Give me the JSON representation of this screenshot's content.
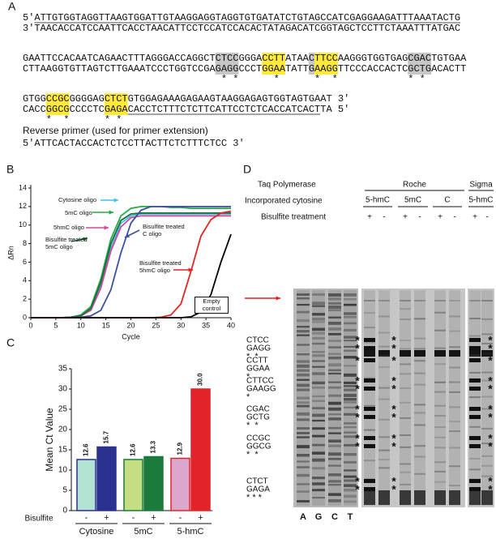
{
  "panel_a": {
    "label": "A",
    "blocks": [
      {
        "top": "5'ATTGTGGTAGGTTAAGTGGATTGTAAGGAGGTAGGTGTGATATCTGTAGCCATCGAGGAAGATTTAAATACTG",
        "bottom": "3'TAACACCATCCAATTCACCTAACATTCCTCCATCCACACTATAGACATCGGTAGCTCCTTCTAAATTTATGAC",
        "stars": []
      },
      {
        "top": "GAATTCCACAATCAGAACTTTAGGGACCAGGCTCTCCGGGACCTTATAACTTCCAAGGGTGGTGAGCGACTGTGAA",
        "bottom": "CTTAAGGTGTTAGTCTTGAAATCCCTGGTCCGAGAGGCCCTGGAATATTGAAGGTTCCCACCACTCGCTGACACTT",
        "stars": [
          {
            "text": "                                  * *             *               * *",
            "color": "#222222"
          },
          {
            "text": "                                           *         *",
            "color": "#e02020"
          }
        ]
      },
      {
        "top": "GTGGCCGCGGGGAGCTCTGTGGAGAAAGAGAAGTAAGGAGAGTGGTAGTGAAT 3'",
        "bottom": "CACCGGCGCCCCTCGAGACACCTCTTTCTCTTCATTCCTCTCACCATCACTTA 5'",
        "stars": [
          {
            "text": "    *  *      * *",
            "color": "#e02020"
          }
        ]
      }
    ],
    "primer_title": "Reverse primer (used for primer extension)",
    "primer": "5'ATTCACTACCACTCTCCTTACTTCTCTTTCTCC 3'"
  },
  "chart_data": [
    {
      "type": "line",
      "label": "B",
      "x_label": "Cycle",
      "y_label": "ΔRn",
      "x": [
        0,
        2,
        4,
        6,
        8,
        10,
        12,
        14,
        16,
        18,
        20,
        22,
        24,
        26,
        28,
        30,
        32,
        34,
        36,
        38,
        40
      ],
      "xlim": [
        0,
        40
      ],
      "xticks": [
        0,
        5,
        10,
        15,
        20,
        25,
        30,
        35,
        40
      ],
      "ylim": [
        0,
        14
      ],
      "yticks": [
        0,
        2,
        4,
        6,
        8,
        10,
        12,
        14
      ],
      "series": [
        {
          "name": "Cytosine oligo",
          "color": "#3fc3e3",
          "values": [
            0,
            0,
            0,
            0,
            0.05,
            0.2,
            0.9,
            3.5,
            7.5,
            10.2,
            11.0,
            11.2,
            11.2,
            11.2,
            11.2,
            11.2,
            11.2,
            11.2,
            11.2,
            11.2,
            11.2
          ]
        },
        {
          "name": "5mC oligo",
          "color": "#2aa848",
          "values": [
            0,
            0,
            0,
            0,
            0.05,
            0.3,
            1.2,
            4.2,
            8.5,
            11.0,
            11.8,
            12.0,
            12.0,
            12.0,
            11.9,
            11.9,
            11.8,
            11.8,
            11.8,
            11.8,
            11.8
          ]
        },
        {
          "name": "5hmC oligo",
          "color": "#d6449e",
          "values": [
            0,
            0,
            0,
            0,
            0.05,
            0.2,
            0.8,
            3.2,
            7.2,
            9.8,
            10.8,
            11.0,
            11.0,
            11.0,
            11.0,
            11.0,
            11.0,
            11.0,
            11.0,
            11.0,
            11.0
          ]
        },
        {
          "name": "Bisulfite treated 5mC oligo",
          "color": "#17703c",
          "values": [
            0,
            0,
            0,
            0,
            0.05,
            0.2,
            1.0,
            3.8,
            8.0,
            10.5,
            11.2,
            11.3,
            11.3,
            11.3,
            11.3,
            11.3,
            11.3,
            11.3,
            11.3,
            11.3,
            11.3
          ]
        },
        {
          "name": "Bisulfite treated C oligo",
          "color": "#3b4fa3",
          "values": [
            0,
            0,
            0,
            0,
            0,
            0.05,
            0.2,
            0.8,
            3.0,
            7.0,
            10.2,
            11.6,
            12.0,
            12.0,
            12.0,
            12.0,
            12.0,
            12.0,
            12.0,
            12.0,
            12.0
          ]
        },
        {
          "name": "Bisulfite treated 5hmC oligo",
          "color": "#e22424",
          "values": [
            0,
            0,
            0,
            0,
            0,
            0,
            0,
            0,
            0,
            0,
            0,
            0,
            0,
            0.05,
            0.3,
            1.5,
            5.0,
            8.8,
            10.6,
            11.3,
            11.5
          ]
        },
        {
          "name": "Empty control",
          "color": "#000000",
          "values": [
            0,
            0,
            0,
            0,
            0,
            0,
            0,
            0,
            0,
            0,
            0,
            0,
            0,
            0,
            0,
            0,
            0.1,
            0.6,
            2.5,
            6.0,
            9.0
          ]
        }
      ]
    },
    {
      "type": "bar",
      "label": "C",
      "y_label": "Mean Ct Value",
      "x_label": "Bisulfite",
      "categories": [
        "-",
        "+",
        "-",
        "+",
        "-",
        "+"
      ],
      "groups": [
        "Cytosine",
        "5mC",
        "5-hmC"
      ],
      "values": [
        12.6,
        15.7,
        12.6,
        13.3,
        12.9,
        30.0
      ],
      "value_labels": [
        "12.6",
        "15.7",
        "12.6",
        "13.3",
        "12.9",
        "30.0"
      ],
      "colors": [
        "#b2e2d2",
        "#2b318f",
        "#c4de84",
        "#1b7a3c",
        "#dba8cc",
        "#e2232a"
      ],
      "ylim": [
        0,
        35
      ],
      "yticks": [
        0,
        5,
        10,
        15,
        20,
        25,
        30,
        35
      ]
    }
  ],
  "panel_d": {
    "label": "D",
    "enzyme_title": "Taq Polymerase",
    "cytosine_title": "Incorporated cytosine",
    "bisulfite_title": "Bisulfite treatment",
    "suppliers": [
      "Roche",
      "Sigma"
    ],
    "cytosines": [
      "5-hmC",
      "5mC",
      "C",
      "5-hmC"
    ],
    "treatments": [
      "+",
      "-",
      "+",
      "-",
      "+",
      "-",
      "+",
      "-"
    ],
    "lanes": [
      "A",
      "G",
      "C",
      "T"
    ],
    "sites": [
      {
        "top": "CTCC",
        "bottom": "GAGG",
        "stars": "*  *",
        "star_color": "#222222",
        "gel_stars": [
          {
            "text": "*",
            "color": "#222222"
          },
          {
            "text": "*",
            "color": "#222222"
          }
        ]
      },
      {
        "top": "CCTT",
        "bottom": "GGAA",
        "stars": "*",
        "star_color": "#e02020",
        "gel_stars": [
          {
            "text": "*",
            "color": "#e02020"
          }
        ]
      },
      {
        "top": "CTTCC",
        "bottom": "GAAGG",
        "stars": "*",
        "star_color": "#e02020",
        "gel_stars": [
          {
            "text": "*",
            "color": "#222222"
          },
          {
            "text": "*",
            "color": "#e02020"
          }
        ]
      },
      {
        "top": "CGAC",
        "bottom": "GCTG",
        "stars": "*  *",
        "star_color": "#222222",
        "gel_stars": [
          {
            "text": "*",
            "color": "#222222"
          },
          {
            "text": "*",
            "color": "#222222"
          }
        ]
      },
      {
        "top": "CCGC",
        "bottom": "GGCG",
        "stars": "*  *",
        "star_color": "#e02020",
        "gel_stars": [
          {
            "text": "*",
            "color": "#e02020"
          },
          {
            "text": "*",
            "color": "#e02020"
          }
        ]
      },
      {
        "top": "CTCT",
        "bottom": "GAGA",
        "stars": "* * *",
        "star_color": "#e02020",
        "gel_stars": [
          {
            "text": "*",
            "color": "#e02020"
          },
          {
            "text": "*",
            "color": "#e02020"
          }
        ]
      }
    ]
  }
}
